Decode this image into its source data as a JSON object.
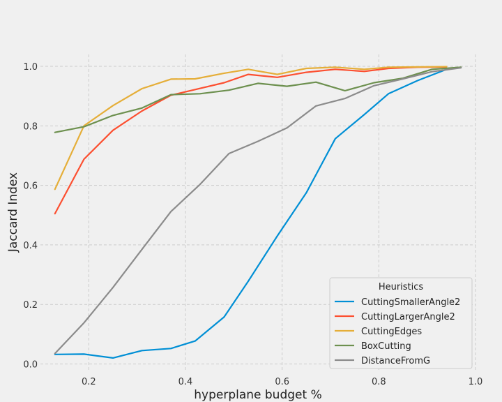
{
  "chart_data": {
    "type": "line",
    "xlabel": "hyperplane budget %",
    "ylabel": "Jaccard Index",
    "xlim": [
      0.1,
      1.0
    ],
    "ylim": [
      -0.02,
      1.04
    ],
    "xticks": [
      0.2,
      0.4,
      0.6,
      0.8,
      1.0
    ],
    "yticks": [
      0.0,
      0.2,
      0.4,
      0.6,
      0.8,
      1.0
    ],
    "grid": true,
    "legend": {
      "title": "Heuristics",
      "placement": "bottom-right"
    },
    "series": [
      {
        "name": "CuttingSmallerAngle2",
        "color": "#008fd5",
        "x": [
          0.13,
          0.19,
          0.25,
          0.31,
          0.37,
          0.42,
          0.48,
          0.53,
          0.59,
          0.65,
          0.71,
          0.77,
          0.82,
          0.88,
          0.94
        ],
        "y": [
          0.032,
          0.033,
          0.02,
          0.045,
          0.052,
          0.077,
          0.158,
          0.278,
          0.43,
          0.575,
          0.757,
          0.838,
          0.908,
          0.952,
          0.99
        ]
      },
      {
        "name": "CuttingLargerAngle2",
        "color": "#fc4f30",
        "x": [
          0.13,
          0.19,
          0.25,
          0.31,
          0.37,
          0.42,
          0.48,
          0.53,
          0.59,
          0.65,
          0.71,
          0.77,
          0.82,
          0.88,
          0.94
        ],
        "y": [
          0.505,
          0.688,
          0.785,
          0.85,
          0.903,
          0.922,
          0.945,
          0.973,
          0.963,
          0.98,
          0.99,
          0.983,
          0.993,
          0.997,
          0.998
        ]
      },
      {
        "name": "CuttingEdges",
        "color": "#e5ae38",
        "x": [
          0.13,
          0.19,
          0.25,
          0.31,
          0.37,
          0.42,
          0.48,
          0.53,
          0.59,
          0.65,
          0.71,
          0.77,
          0.82,
          0.88,
          0.94
        ],
        "y": [
          0.587,
          0.8,
          0.868,
          0.925,
          0.957,
          0.958,
          0.977,
          0.99,
          0.973,
          0.993,
          0.997,
          0.99,
          0.997,
          0.998,
          0.999
        ]
      },
      {
        "name": "BoxCutting",
        "color": "#6d904f",
        "x": [
          0.13,
          0.19,
          0.25,
          0.31,
          0.37,
          0.43,
          0.49,
          0.55,
          0.61,
          0.67,
          0.73,
          0.79,
          0.85,
          0.91,
          0.97
        ],
        "y": [
          0.778,
          0.797,
          0.835,
          0.86,
          0.905,
          0.908,
          0.92,
          0.943,
          0.933,
          0.947,
          0.918,
          0.945,
          0.96,
          0.99,
          0.997
        ]
      },
      {
        "name": "DistanceFromG",
        "color": "#8b8b8b",
        "x": [
          0.13,
          0.19,
          0.25,
          0.31,
          0.37,
          0.43,
          0.49,
          0.55,
          0.61,
          0.67,
          0.73,
          0.79,
          0.85,
          0.91,
          0.97
        ],
        "y": [
          0.035,
          0.138,
          0.257,
          0.385,
          0.512,
          0.603,
          0.707,
          0.748,
          0.793,
          0.867,
          0.892,
          0.935,
          0.958,
          0.982,
          0.995
        ]
      }
    ]
  }
}
